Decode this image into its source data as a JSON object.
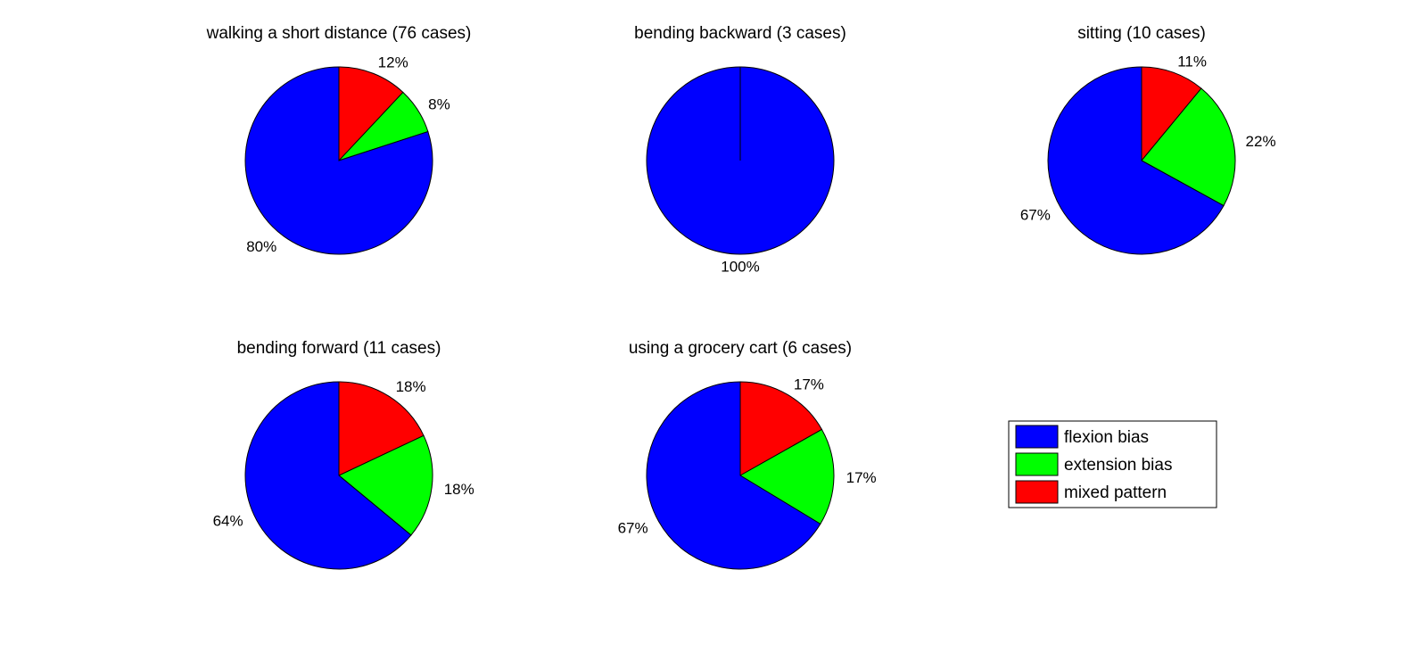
{
  "chart_data": [
    {
      "type": "pie",
      "title": "walking a short distance (76 cases)",
      "slices": [
        {
          "name": "mixed pattern",
          "value": 12,
          "label": "12%"
        },
        {
          "name": "extension bias",
          "value": 8,
          "label": "8%"
        },
        {
          "name": "flexion bias",
          "value": 80,
          "label": "80%"
        }
      ]
    },
    {
      "type": "pie",
      "title": "bending backward (3 cases)",
      "slices": [
        {
          "name": "mixed pattern",
          "value": 0,
          "label": ""
        },
        {
          "name": "extension bias",
          "value": 0,
          "label": ""
        },
        {
          "name": "flexion bias",
          "value": 100,
          "label": "100%"
        }
      ]
    },
    {
      "type": "pie",
      "title": "sitting  (10 cases)",
      "slices": [
        {
          "name": "mixed pattern",
          "value": 11,
          "label": "11%"
        },
        {
          "name": "extension bias",
          "value": 22,
          "label": "22%"
        },
        {
          "name": "flexion bias",
          "value": 67,
          "label": "67%"
        }
      ]
    },
    {
      "type": "pie",
      "title": "bending forward (11 cases)",
      "slices": [
        {
          "name": "mixed pattern",
          "value": 18,
          "label": "18%"
        },
        {
          "name": "extension bias",
          "value": 18,
          "label": "18%"
        },
        {
          "name": "flexion bias",
          "value": 64,
          "label": "64%"
        }
      ]
    },
    {
      "type": "pie",
      "title": "using a grocery cart (6 cases)",
      "slices": [
        {
          "name": "mixed pattern",
          "value": 17,
          "label": "17%"
        },
        {
          "name": "extension bias",
          "value": 17,
          "label": "17%"
        },
        {
          "name": "flexion bias",
          "value": 67,
          "label": "67%"
        }
      ]
    }
  ],
  "legend": {
    "placement": "bottom-right",
    "items": [
      {
        "name": "flexion bias",
        "label": "flexion bias",
        "color": "#0000ff"
      },
      {
        "name": "extension bias",
        "label": "extension bias",
        "color": "#00ff00"
      },
      {
        "name": "mixed pattern",
        "label": "mixed pattern",
        "color": "#ff0000"
      }
    ]
  },
  "colors": {
    "flexion bias": "#0000ff",
    "extension bias": "#00ff00",
    "mixed pattern": "#ff0000"
  }
}
